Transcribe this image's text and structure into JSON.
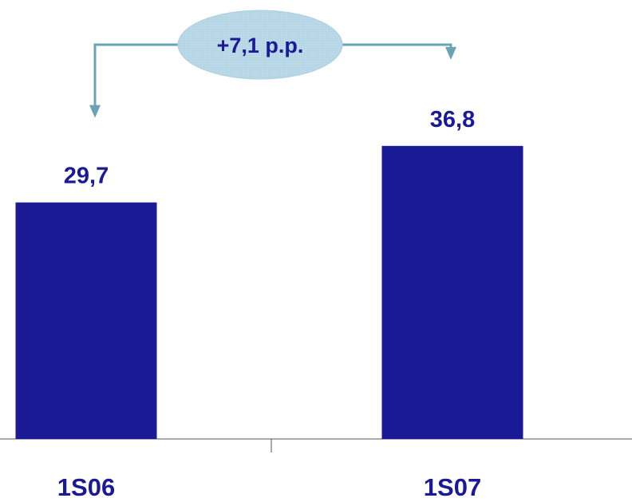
{
  "chart_data": {
    "type": "bar",
    "categories": [
      "1S06",
      "1S07"
    ],
    "values": [
      29.7,
      36.8
    ],
    "value_labels": [
      "29,7",
      "36,8"
    ],
    "ylim": [
      0,
      45
    ],
    "grid": false,
    "bar_color": "#1a1a96",
    "annotation": {
      "text": "+7,1 p.p.",
      "from_category": "1S06",
      "to_category": "1S07",
      "arrow_color": "#6aa3b8",
      "ellipse_color": "#b5d5e4"
    }
  }
}
